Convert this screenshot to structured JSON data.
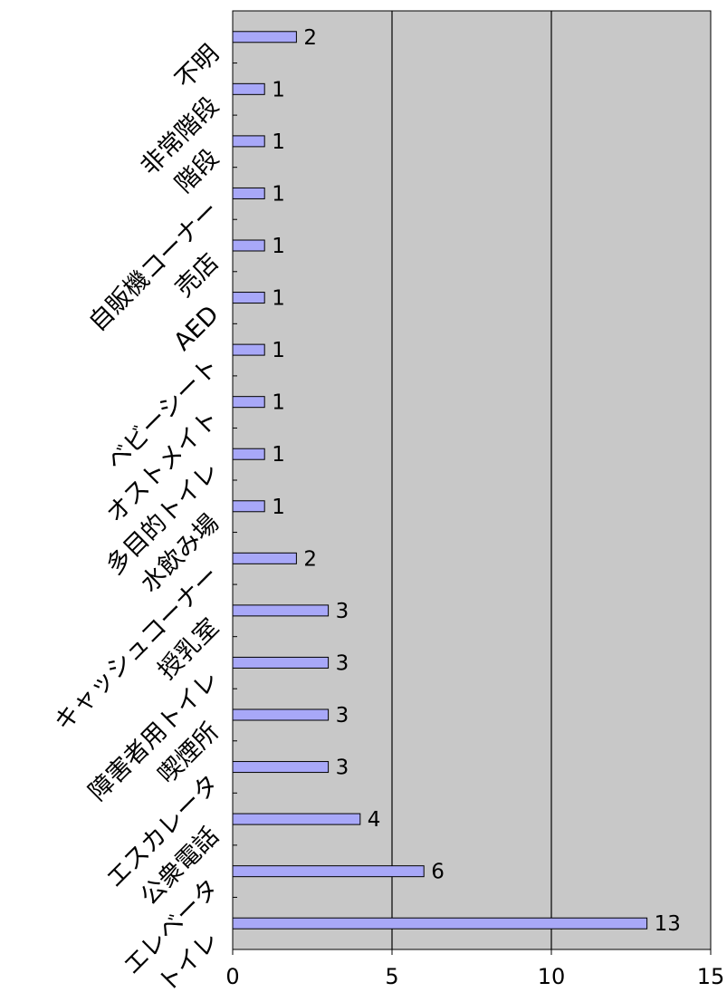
{
  "chart_data": {
    "type": "bar",
    "orientation": "horizontal",
    "categories": [
      "トイレ",
      "エレベータ",
      "公衆電話",
      "エスカレータ",
      "喫煙所",
      "障害者用トイレ",
      "授乳室",
      "キャッシュコーナー",
      "水飲み場",
      "多目的トイレ",
      "オストメイト",
      "ベビーシート",
      "AED",
      "売店",
      "自販機コーナー",
      "階段",
      "非常階段",
      "不明"
    ],
    "values": [
      13,
      6,
      4,
      3,
      3,
      3,
      3,
      2,
      1,
      1,
      1,
      1,
      1,
      1,
      1,
      1,
      1,
      2
    ],
    "xlim": [
      0,
      15
    ],
    "x_ticks": [
      "0",
      "5",
      "10",
      "15"
    ],
    "title": "",
    "xlabel": "",
    "ylabel": "",
    "grid": "vertical",
    "plot_background": "#c8c8c8",
    "bar_color": "#a8a8f8",
    "data_labels": true
  }
}
